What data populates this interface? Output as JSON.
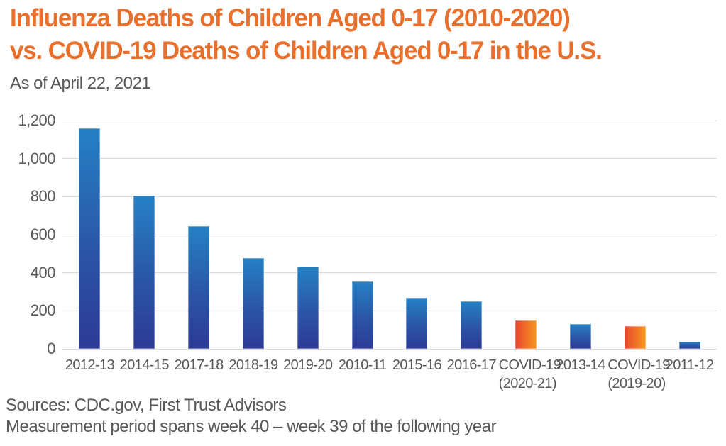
{
  "header": {
    "title_line1": "Influenza Deaths of Children Aged 0-17 (2010-2020)",
    "title_line2": "vs. COVID-19 Deaths of Children Aged 0-17 in the U.S.",
    "subtitle": "As of April 22, 2021"
  },
  "footer": {
    "line1": "Sources: CDC.gov, First Trust Advisors",
    "line2": "Measurement period spans week 40 – week 39 of the following year"
  },
  "colors": {
    "title_orange": "#E8702C",
    "text_gray": "#58595B",
    "gridline": "#DBDBDB",
    "bar_blue_top": "#2581C4",
    "bar_blue_bottom": "#2C3A96",
    "bar_orange_left": "#E8432F",
    "bar_orange_right": "#F6991F"
  },
  "chart_data": {
    "type": "bar",
    "title": "Influenza Deaths of Children Aged 0-17 (2010-2020) vs. COVID-19 Deaths of Children Aged 0-17 in the U.S.",
    "subtitle": "As of April 22, 2021",
    "xlabel": "",
    "ylabel": "",
    "ylim": [
      0,
      1200
    ],
    "ytick_interval": 200,
    "ytick_labels": [
      "0",
      "200",
      "400",
      "600",
      "800",
      "1,000",
      "1,200"
    ],
    "grid": true,
    "legend": "none",
    "categories": [
      "2012-13",
      "2014-15",
      "2017-18",
      "2018-19",
      "2019-20",
      "2010-11",
      "2015-16",
      "2016-17",
      "COVID-19",
      "2013-14",
      "COVID-19",
      "2011-12"
    ],
    "sublabels": [
      "",
      "",
      "",
      "",
      "",
      "",
      "",
      "",
      "(2020-21)",
      "",
      "(2019-20)",
      ""
    ],
    "values": [
      1160,
      805,
      645,
      478,
      434,
      355,
      268,
      251,
      149,
      130,
      118,
      38
    ],
    "bar_colors": [
      "blue",
      "blue",
      "blue",
      "blue",
      "blue",
      "blue",
      "blue",
      "blue",
      "orange",
      "blue",
      "orange",
      "blue"
    ]
  }
}
